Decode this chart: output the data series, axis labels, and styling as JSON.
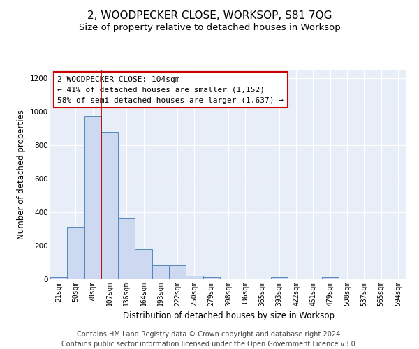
{
  "title": "2, WOODPECKER CLOSE, WORKSOP, S81 7QG",
  "subtitle": "Size of property relative to detached houses in Worksop",
  "xlabel": "Distribution of detached houses by size in Worksop",
  "ylabel": "Number of detached properties",
  "bin_labels": [
    "21sqm",
    "50sqm",
    "78sqm",
    "107sqm",
    "136sqm",
    "164sqm",
    "193sqm",
    "222sqm",
    "250sqm",
    "279sqm",
    "308sqm",
    "336sqm",
    "365sqm",
    "393sqm",
    "422sqm",
    "451sqm",
    "479sqm",
    "508sqm",
    "537sqm",
    "565sqm",
    "594sqm"
  ],
  "bar_heights": [
    13,
    313,
    976,
    878,
    363,
    180,
    83,
    83,
    22,
    13,
    0,
    0,
    0,
    13,
    0,
    0,
    13,
    0,
    0,
    0,
    0
  ],
  "bar_color": "#ccd9f0",
  "bar_edge_color": "#5588bb",
  "vline_x": 2.5,
  "vline_color": "#cc0000",
  "annotation_text": "2 WOODPECKER CLOSE: 104sqm\n← 41% of detached houses are smaller (1,152)\n58% of semi-detached houses are larger (1,637) →",
  "annotation_box_color": "#ffffff",
  "annotation_box_edge_color": "#cc0000",
  "ylim": [
    0,
    1250
  ],
  "yticks": [
    0,
    200,
    400,
    600,
    800,
    1000,
    1200
  ],
  "background_color": "#e8eef8",
  "grid_color": "#ffffff",
  "footer_text": "Contains HM Land Registry data © Crown copyright and database right 2024.\nContains public sector information licensed under the Open Government Licence v3.0.",
  "title_fontsize": 11,
  "subtitle_fontsize": 9.5,
  "annotation_fontsize": 8,
  "footer_fontsize": 7,
  "ylabel_fontsize": 8.5,
  "xlabel_fontsize": 8.5,
  "tick_fontsize": 7
}
